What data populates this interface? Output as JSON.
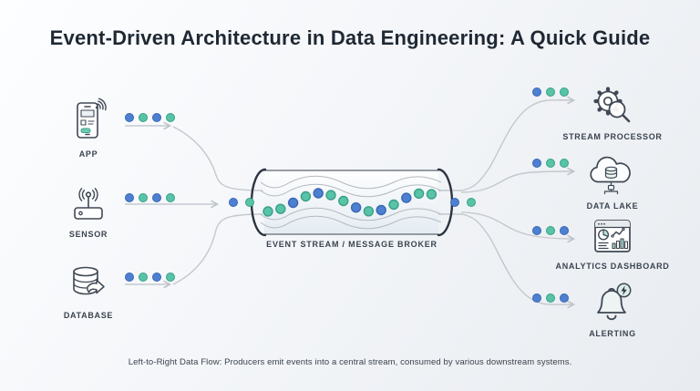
{
  "title": "Event-Driven Architecture in Data Engineering: A Quick Guide",
  "caption": "Left-to-Right Data Flow: Producers emit events into a central stream, consumed by various downstream systems.",
  "colors": {
    "blue": "#4d80d0",
    "blue_border": "#3a66b5",
    "teal": "#57c3a7",
    "teal_border": "#3aa088",
    "line": "#c3c9cf",
    "icon_stroke": "#3f4854"
  },
  "producers": [
    {
      "id": "app",
      "label": "APP",
      "icon": "smartphone-icon",
      "dots": [
        "blue",
        "teal",
        "blue",
        "teal"
      ]
    },
    {
      "id": "sensor",
      "label": "SENSOR",
      "icon": "router-icon",
      "dots": [
        "blue",
        "teal",
        "blue",
        "teal"
      ]
    },
    {
      "id": "database",
      "label": "DATABASE",
      "icon": "database-icon",
      "dots": [
        "blue",
        "teal",
        "blue",
        "teal"
      ]
    }
  ],
  "pipe": {
    "label": "EVENT STREAM / MESSAGE BROKER",
    "entry_dots": [
      "blue",
      "teal"
    ],
    "exit_dots": [
      "blue",
      "teal"
    ],
    "stream_dots": [
      "teal",
      "teal",
      "blue",
      "teal",
      "blue",
      "teal",
      "teal",
      "blue",
      "teal",
      "blue",
      "teal",
      "blue",
      "teal",
      "teal"
    ]
  },
  "consumers": [
    {
      "id": "stream-processor",
      "label": "STREAM PROCESSOR",
      "icon": "gear-magnifier-icon",
      "dots": [
        "blue",
        "teal",
        "teal"
      ]
    },
    {
      "id": "data-lake",
      "label": "DATA LAKE",
      "icon": "cloud-database-icon",
      "dots": [
        "blue",
        "teal",
        "teal"
      ]
    },
    {
      "id": "analytics-dashboard",
      "label": "ANALYTICS DASHBOARD",
      "icon": "dashboard-icon",
      "dots": [
        "blue",
        "teal",
        "blue"
      ]
    },
    {
      "id": "alerting",
      "label": "ALERTING",
      "icon": "bell-alert-icon",
      "dots": [
        "blue",
        "teal",
        "blue"
      ]
    }
  ]
}
